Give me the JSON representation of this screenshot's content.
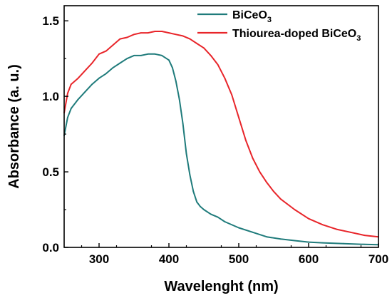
{
  "chart_data": {
    "type": "line",
    "xlabel": "Wavelenght (nm)",
    "ylabel": "Absorbance (a. u.)",
    "xlim": [
      250,
      700
    ],
    "ylim": [
      0.0,
      1.6
    ],
    "x_ticks": [
      300,
      400,
      500,
      600,
      700
    ],
    "x_tick_labels": [
      "300",
      "400",
      "500",
      "600",
      "700"
    ],
    "y_ticks": [
      0.0,
      0.5,
      1.0,
      1.5
    ],
    "y_tick_labels": [
      "0.0",
      "0.5",
      "1.0",
      "1.5"
    ],
    "grid": false,
    "legend_position": "top-right",
    "series": [
      {
        "name": "BiCeO",
        "name_subscript": "3",
        "color": "#1f7b7b",
        "x": [
          250,
          255,
          260,
          270,
          280,
          290,
          300,
          310,
          320,
          330,
          340,
          350,
          360,
          370,
          380,
          390,
          400,
          405,
          410,
          415,
          420,
          425,
          430,
          435,
          440,
          445,
          450,
          460,
          470,
          480,
          500,
          520,
          540,
          560,
          580,
          600,
          620,
          650,
          680,
          700
        ],
        "y": [
          0.74,
          0.86,
          0.92,
          0.98,
          1.03,
          1.08,
          1.12,
          1.15,
          1.19,
          1.22,
          1.25,
          1.27,
          1.27,
          1.28,
          1.28,
          1.27,
          1.24,
          1.19,
          1.1,
          0.98,
          0.82,
          0.62,
          0.48,
          0.37,
          0.3,
          0.27,
          0.25,
          0.22,
          0.2,
          0.17,
          0.13,
          0.1,
          0.07,
          0.055,
          0.045,
          0.035,
          0.03,
          0.025,
          0.02,
          0.018
        ]
      },
      {
        "name": "Thiourea-doped BiCeO",
        "name_subscript": "3",
        "color": "#e8252a",
        "x": [
          250,
          255,
          260,
          270,
          280,
          290,
          300,
          310,
          320,
          330,
          340,
          350,
          360,
          370,
          380,
          390,
          400,
          410,
          420,
          430,
          440,
          450,
          460,
          470,
          480,
          490,
          500,
          510,
          520,
          530,
          540,
          550,
          560,
          580,
          600,
          620,
          640,
          660,
          680,
          700
        ],
        "y": [
          0.89,
          1.02,
          1.08,
          1.12,
          1.17,
          1.22,
          1.28,
          1.3,
          1.34,
          1.38,
          1.39,
          1.41,
          1.42,
          1.42,
          1.43,
          1.43,
          1.42,
          1.41,
          1.4,
          1.38,
          1.35,
          1.32,
          1.27,
          1.21,
          1.12,
          1.01,
          0.86,
          0.71,
          0.59,
          0.5,
          0.43,
          0.37,
          0.32,
          0.25,
          0.19,
          0.15,
          0.12,
          0.1,
          0.08,
          0.07
        ]
      }
    ]
  }
}
